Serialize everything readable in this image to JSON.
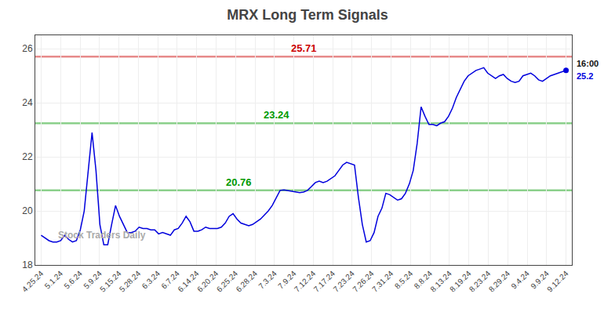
{
  "chart_data": {
    "type": "line",
    "title": "MRX Long Term Signals",
    "x": [
      0,
      0.2015,
      0.403,
      0.6045,
      0.806,
      1.0075,
      1.209,
      1.4104,
      1.6119,
      1.8134,
      2.0149,
      2.2164,
      2.4179,
      2.6194,
      2.8209,
      3.0224,
      3.2239,
      3.4254,
      3.6269,
      3.8284,
      4.0299,
      4.2313,
      4.4328,
      4.6343,
      4.8358,
      5.0373,
      5.2388,
      5.4403,
      5.6418,
      5.8433,
      6.0448,
      6.2463,
      6.4478,
      6.6493,
      6.8507,
      7.0522,
      7.2537,
      7.4552,
      7.6567,
      7.8582,
      8.0597,
      8.2612,
      8.4627,
      8.6642,
      8.8657,
      9.0672,
      9.2687,
      9.4701,
      9.6716,
      9.8731,
      10.0746,
      10.2761,
      10.4776,
      10.6791,
      10.8806,
      11.0821,
      11.2836,
      11.4851,
      11.6866,
      11.8881,
      12.0896,
      12.291,
      12.4925,
      12.694,
      12.8955,
      13.097,
      13.2985,
      13.5,
      13.7015,
      13.903,
      14.1045,
      14.306,
      14.5075,
      14.709,
      14.9104,
      15.1119,
      15.3134,
      15.5149,
      15.7164,
      15.9179,
      16.1194,
      16.3209,
      16.5224,
      16.7239,
      16.9254,
      17.1269,
      17.3284,
      17.5299,
      17.7313,
      17.9328,
      18.1343,
      18.3358,
      18.5373,
      18.7388,
      18.9403,
      19.1418,
      19.3433,
      19.5448,
      19.7463,
      19.9478,
      20.1493,
      20.3507,
      20.5522,
      20.7537,
      20.9552,
      21.1567,
      21.3582,
      21.5597,
      21.7612,
      21.9627,
      22.1642,
      22.3657,
      22.5672,
      22.7687,
      22.9701,
      23.1716,
      23.3731,
      23.5746,
      23.7761,
      23.9776,
      24.1791,
      24.3806,
      24.5821,
      24.7836,
      24.9851,
      25.1866,
      25.3881,
      25.5896,
      25.791,
      25.9925,
      26.194,
      26.3955,
      26.597,
      26.7985,
      27
    ],
    "values": [
      19.1,
      19.0,
      18.9,
      18.85,
      18.85,
      18.9,
      19.1,
      18.95,
      18.85,
      18.9,
      19.3,
      20.0,
      21.5,
      22.9,
      21.5,
      19.5,
      18.75,
      18.75,
      19.5,
      20.2,
      19.8,
      19.5,
      19.2,
      19.2,
      19.25,
      19.4,
      19.35,
      19.35,
      19.3,
      19.3,
      19.15,
      19.2,
      19.15,
      19.1,
      19.3,
      19.35,
      19.55,
      19.8,
      19.6,
      19.25,
      19.25,
      19.3,
      19.4,
      19.35,
      19.35,
      19.35,
      19.4,
      19.55,
      19.8,
      19.9,
      19.7,
      19.55,
      19.5,
      19.45,
      19.5,
      19.6,
      19.7,
      19.85,
      20.0,
      20.2,
      20.5,
      20.76,
      20.78,
      20.75,
      20.72,
      20.7,
      20.68,
      20.7,
      20.76,
      20.9,
      21.05,
      21.1,
      21.05,
      21.1,
      21.2,
      21.3,
      21.5,
      21.7,
      21.8,
      21.75,
      21.7,
      20.5,
      19.5,
      18.85,
      18.9,
      19.2,
      19.8,
      20.1,
      20.65,
      20.6,
      20.5,
      20.4,
      20.45,
      20.65,
      21.0,
      21.5,
      22.5,
      23.85,
      23.5,
      23.2,
      23.2,
      23.15,
      23.25,
      23.3,
      23.5,
      23.8,
      24.2,
      24.5,
      24.8,
      25.0,
      25.1,
      25.2,
      25.25,
      25.3,
      25.1,
      25.0,
      24.9,
      25.0,
      25.05,
      24.9,
      24.8,
      24.75,
      24.8,
      25.0,
      25.05,
      25.1,
      25.0,
      24.85,
      24.8,
      24.9,
      25.0,
      25.05,
      25.1,
      25.15,
      25.2
    ],
    "color": "#0000dd",
    "xlim": [
      -0.3,
      27.3
    ],
    "xticks": [
      {
        "value": 0,
        "label": "4.25.24"
      },
      {
        "value": 1,
        "label": "5.1.24"
      },
      {
        "value": 2,
        "label": "5.6.24"
      },
      {
        "value": 3,
        "label": "5.9.24"
      },
      {
        "value": 4,
        "label": "5.15.24"
      },
      {
        "value": 5,
        "label": "5.28.24"
      },
      {
        "value": 6,
        "label": "6.3.24"
      },
      {
        "value": 7,
        "label": "6.7.24"
      },
      {
        "value": 8,
        "label": "6.14.24"
      },
      {
        "value": 9,
        "label": "6.20.24"
      },
      {
        "value": 10,
        "label": "6.25.24"
      },
      {
        "value": 11,
        "label": "6.28.24"
      },
      {
        "value": 12,
        "label": "7.3.24"
      },
      {
        "value": 13,
        "label": "7.9.24"
      },
      {
        "value": 14,
        "label": "7.12.24"
      },
      {
        "value": 15,
        "label": "7.17.24"
      },
      {
        "value": 16,
        "label": "7.23.24"
      },
      {
        "value": 17,
        "label": "7.26.24"
      },
      {
        "value": 18,
        "label": "7.31.24"
      },
      {
        "value": 19,
        "label": "8.5.24"
      },
      {
        "value": 20,
        "label": "8.8.24"
      },
      {
        "value": 21,
        "label": "8.13.24"
      },
      {
        "value": 22,
        "label": "8.19.24"
      },
      {
        "value": 23,
        "label": "8.23.24"
      },
      {
        "value": 24,
        "label": "8.29.24"
      },
      {
        "value": 25,
        "label": "9.4.24"
      },
      {
        "value": 26,
        "label": "9.9.24"
      },
      {
        "value": 27,
        "label": "9.12.24"
      }
    ],
    "ylim": [
      18.0,
      26.5
    ],
    "yticks": [
      18,
      20,
      22,
      24,
      26
    ],
    "grid": true,
    "hlines": [
      {
        "y": 25.71,
        "label": "25.71",
        "color": "#cc0000"
      },
      {
        "y": 23.24,
        "label": "23.24",
        "color": "#009900"
      },
      {
        "y": 20.76,
        "label": "20.76",
        "color": "#009900"
      }
    ],
    "annotations": [
      "16:00",
      "25.2"
    ],
    "watermark": "Stock Traders Daily"
  }
}
